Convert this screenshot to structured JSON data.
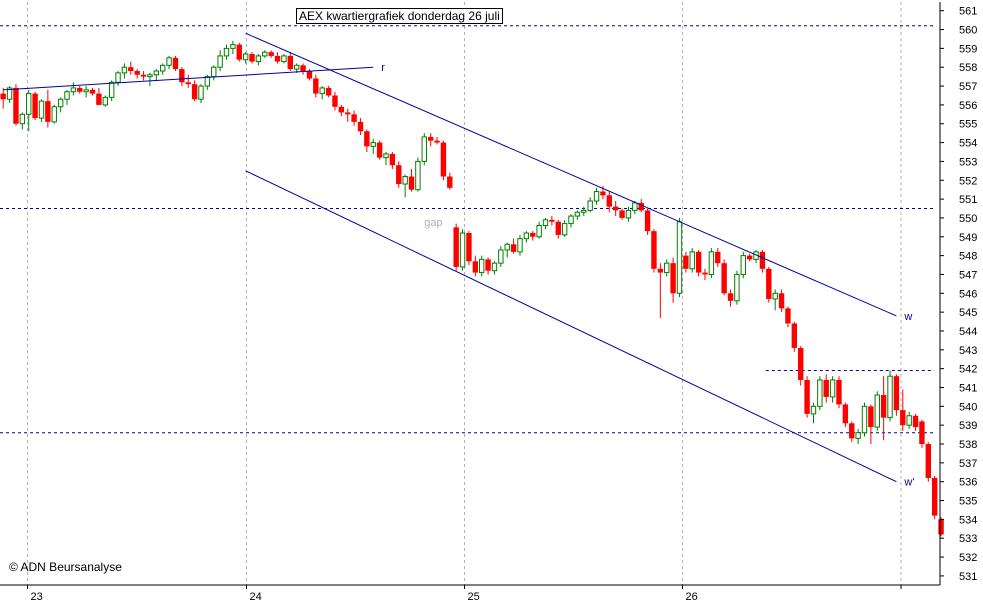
{
  "chart_data": {
    "type": "candlestick",
    "title": "AEX kwartiergrafiek donderdag 26 juli",
    "copyright": "© ADN Beursanalyse",
    "y_axis": {
      "min": 531,
      "max": 561,
      "ticks": [
        531,
        532,
        533,
        534,
        535,
        536,
        537,
        538,
        539,
        540,
        541,
        542,
        543,
        544,
        545,
        546,
        547,
        548,
        549,
        550,
        551,
        552,
        553,
        554,
        555,
        556,
        557,
        558,
        559,
        560,
        561
      ]
    },
    "x_axis": {
      "labels": [
        "23",
        "24",
        "25",
        "26"
      ],
      "bars_per_day": 34
    },
    "grid": true,
    "colors": {
      "up": "#008000",
      "down": "#ff0000",
      "trend": "#0000a0",
      "ref": "#0000a0",
      "grid": "#b0b0b0",
      "gap": "#b0b0b0"
    },
    "reference_lines": [
      {
        "y": 560.2
      },
      {
        "y": 550.5
      },
      {
        "y": 538.6
      },
      {
        "y": 541.9,
        "from_bar": 120
      }
    ],
    "trend_lines": [
      {
        "label": "r",
        "from": [
          0,
          556.8
        ],
        "to": [
          58,
          558.0
        ]
      },
      {
        "label": "w",
        "from": [
          38,
          559.8
        ],
        "to": [
          140,
          544.8
        ]
      },
      {
        "label": "w'",
        "from": [
          38,
          552.5
        ],
        "to": [
          140,
          536.0
        ]
      }
    ],
    "annotations": [
      {
        "text": "gap",
        "x": 66,
        "y": 550.2
      }
    ],
    "candles": [
      [
        556.6,
        556.9,
        555.8,
        556.3
      ],
      [
        556.3,
        557.0,
        556.1,
        556.9
      ],
      [
        556.9,
        557.1,
        554.9,
        555.0
      ],
      [
        555.0,
        555.6,
        554.7,
        555.5
      ],
      [
        555.5,
        556.8,
        554.6,
        556.6
      ],
      [
        556.6,
        556.7,
        555.2,
        555.3
      ],
      [
        555.3,
        556.3,
        555.1,
        556.2
      ],
      [
        556.2,
        556.8,
        554.8,
        555.1
      ],
      [
        555.1,
        556.0,
        555.0,
        555.9
      ],
      [
        555.9,
        556.4,
        555.6,
        556.3
      ],
      [
        556.3,
        556.8,
        556.0,
        556.7
      ],
      [
        556.7,
        557.2,
        556.5,
        556.9
      ],
      [
        556.9,
        557.0,
        556.6,
        556.7
      ],
      [
        556.7,
        557.0,
        556.4,
        556.8
      ],
      [
        556.8,
        556.9,
        556.5,
        556.6
      ],
      [
        556.6,
        556.9,
        556.0,
        556.0
      ],
      [
        556.0,
        556.5,
        555.9,
        556.4
      ],
      [
        556.4,
        557.3,
        556.2,
        557.2
      ],
      [
        557.2,
        557.8,
        557.0,
        557.7
      ],
      [
        557.7,
        558.2,
        557.4,
        558.0
      ],
      [
        558.0,
        558.3,
        557.6,
        557.8
      ],
      [
        557.8,
        557.9,
        557.4,
        557.6
      ],
      [
        557.6,
        557.8,
        557.3,
        557.5
      ],
      [
        557.5,
        557.7,
        557.0,
        557.6
      ],
      [
        557.6,
        557.9,
        557.3,
        557.8
      ],
      [
        557.8,
        558.2,
        557.6,
        558.1
      ],
      [
        558.1,
        558.6,
        557.9,
        558.5
      ],
      [
        558.5,
        558.6,
        557.8,
        557.9
      ],
      [
        557.9,
        558.0,
        557.0,
        557.2
      ],
      [
        557.2,
        557.6,
        556.9,
        557.1
      ],
      [
        557.1,
        557.3,
        556.2,
        556.3
      ],
      [
        556.3,
        557.1,
        556.1,
        557.0
      ],
      [
        557.0,
        557.6,
        556.8,
        557.5
      ],
      [
        557.5,
        558.1,
        557.3,
        558.0
      ],
      [
        558.0,
        558.9,
        557.8,
        558.6
      ],
      [
        558.6,
        559.2,
        558.4,
        559.0
      ],
      [
        559.0,
        559.4,
        558.7,
        559.2
      ],
      [
        559.2,
        559.3,
        558.3,
        558.4
      ],
      [
        558.4,
        558.8,
        558.2,
        558.7
      ],
      [
        558.7,
        558.8,
        558.2,
        558.3
      ],
      [
        558.3,
        558.7,
        558.1,
        558.6
      ],
      [
        558.6,
        558.9,
        558.5,
        558.8
      ],
      [
        558.8,
        558.9,
        558.5,
        558.6
      ],
      [
        558.6,
        558.8,
        558.2,
        558.3
      ],
      [
        558.3,
        558.7,
        558.2,
        558.6
      ],
      [
        558.6,
        558.8,
        557.8,
        557.9
      ],
      [
        557.9,
        558.2,
        557.7,
        558.1
      ],
      [
        558.1,
        558.2,
        557.6,
        557.8
      ],
      [
        557.8,
        557.9,
        557.3,
        557.4
      ],
      [
        557.4,
        557.6,
        556.4,
        556.6
      ],
      [
        556.6,
        557.0,
        556.3,
        556.9
      ],
      [
        556.9,
        557.0,
        556.4,
        556.5
      ],
      [
        556.5,
        556.7,
        555.7,
        555.9
      ],
      [
        555.9,
        556.0,
        555.4,
        555.6
      ],
      [
        555.6,
        555.8,
        555.1,
        555.5
      ],
      [
        555.5,
        555.7,
        554.9,
        555.1
      ],
      [
        555.1,
        555.3,
        554.4,
        554.6
      ],
      [
        554.6,
        554.7,
        553.5,
        553.8
      ],
      [
        553.8,
        554.2,
        553.4,
        554.0
      ],
      [
        554.0,
        554.1,
        553.1,
        553.2
      ],
      [
        553.2,
        553.5,
        552.8,
        553.4
      ],
      [
        553.4,
        553.5,
        552.6,
        552.8
      ],
      [
        552.8,
        553.0,
        551.6,
        551.8
      ],
      [
        551.8,
        552.3,
        551.1,
        552.2
      ],
      [
        552.2,
        552.6,
        551.4,
        551.5
      ],
      [
        551.5,
        553.2,
        551.4,
        553.0
      ],
      [
        553.0,
        554.5,
        552.8,
        554.3
      ],
      [
        554.3,
        554.5,
        553.8,
        554.1
      ],
      [
        554.1,
        554.3,
        553.9,
        554.0
      ],
      [
        554.0,
        554.1,
        552.0,
        552.2
      ],
      [
        552.2,
        552.4,
        551.5,
        551.6
      ],
      [
        549.5,
        549.7,
        547.2,
        547.4
      ],
      [
        547.4,
        549.4,
        547.2,
        549.2
      ],
      [
        549.2,
        549.3,
        547.5,
        547.7
      ],
      [
        547.7,
        548.0,
        546.9,
        547.1
      ],
      [
        547.1,
        548.0,
        546.9,
        547.8
      ],
      [
        547.8,
        547.9,
        547.0,
        547.2
      ],
      [
        547.2,
        547.7,
        547.0,
        547.6
      ],
      [
        547.6,
        548.5,
        547.4,
        548.3
      ],
      [
        548.3,
        548.7,
        547.9,
        548.6
      ],
      [
        548.6,
        548.9,
        548.1,
        548.2
      ],
      [
        548.2,
        549.1,
        548.0,
        548.9
      ],
      [
        548.9,
        549.3,
        548.7,
        549.2
      ],
      [
        549.2,
        549.3,
        548.8,
        549.0
      ],
      [
        549.0,
        549.8,
        548.9,
        549.6
      ],
      [
        549.6,
        550.0,
        549.4,
        549.9
      ],
      [
        549.9,
        550.1,
        549.6,
        549.8
      ],
      [
        549.8,
        549.9,
        548.9,
        549.1
      ],
      [
        549.1,
        549.9,
        549.0,
        549.7
      ],
      [
        549.7,
        550.2,
        549.5,
        550.1
      ],
      [
        550.1,
        550.4,
        549.9,
        550.3
      ],
      [
        550.3,
        550.6,
        550.1,
        550.4
      ],
      [
        550.4,
        551.1,
        550.3,
        550.9
      ],
      [
        550.9,
        551.6,
        550.7,
        551.4
      ],
      [
        551.4,
        551.7,
        551.0,
        551.2
      ],
      [
        551.2,
        551.4,
        550.3,
        550.6
      ],
      [
        550.6,
        550.9,
        550.1,
        550.4
      ],
      [
        550.4,
        550.5,
        549.9,
        550.0
      ],
      [
        550.0,
        550.6,
        549.8,
        550.4
      ],
      [
        550.4,
        550.9,
        550.2,
        550.8
      ],
      [
        550.8,
        551.0,
        550.3,
        550.4
      ],
      [
        550.4,
        550.5,
        549.1,
        549.3
      ],
      [
        549.3,
        549.4,
        547.1,
        547.3
      ],
      [
        547.3,
        547.6,
        544.7,
        547.1
      ],
      [
        547.1,
        547.8,
        546.9,
        547.6
      ],
      [
        547.6,
        547.9,
        545.5,
        546.0
      ],
      [
        546.0,
        550.0,
        545.8,
        549.8
      ],
      [
        548.0,
        548.2,
        547.1,
        547.3
      ],
      [
        547.3,
        548.4,
        547.1,
        548.2
      ],
      [
        548.2,
        548.3,
        546.9,
        547.1
      ],
      [
        547.1,
        547.3,
        546.7,
        547.0
      ],
      [
        547.0,
        548.4,
        546.8,
        548.2
      ],
      [
        548.2,
        548.4,
        547.4,
        547.6
      ],
      [
        547.6,
        547.8,
        545.9,
        546.0
      ],
      [
        546.0,
        546.2,
        545.3,
        545.6
      ],
      [
        545.6,
        547.2,
        545.4,
        547.0
      ],
      [
        547.0,
        548.2,
        546.8,
        548.0
      ],
      [
        548.0,
        548.1,
        547.7,
        547.8
      ],
      [
        547.8,
        548.3,
        547.6,
        548.2
      ],
      [
        548.2,
        548.3,
        547.1,
        547.3
      ],
      [
        547.3,
        547.4,
        545.5,
        545.7
      ],
      [
        545.7,
        546.2,
        545.1,
        546.0
      ],
      [
        546.0,
        546.2,
        545.0,
        545.2
      ],
      [
        545.2,
        545.3,
        544.2,
        544.4
      ],
      [
        544.4,
        544.5,
        542.9,
        543.1
      ],
      [
        543.1,
        543.2,
        541.1,
        541.4
      ],
      [
        541.4,
        541.6,
        539.4,
        539.6
      ],
      [
        539.6,
        540.2,
        539.1,
        540.0
      ],
      [
        540.0,
        541.6,
        539.8,
        541.4
      ],
      [
        541.4,
        541.7,
        540.2,
        540.5
      ],
      [
        540.5,
        541.6,
        540.2,
        541.4
      ],
      [
        541.4,
        541.6,
        539.9,
        540.1
      ],
      [
        540.1,
        540.2,
        538.9,
        539.1
      ],
      [
        539.1,
        539.2,
        538.1,
        538.3
      ],
      [
        538.3,
        538.8,
        538.0,
        538.6
      ],
      [
        538.6,
        540.2,
        538.4,
        540.0
      ],
      [
        540.0,
        540.1,
        538.0,
        538.9
      ],
      [
        538.9,
        540.8,
        538.7,
        540.6
      ],
      [
        540.6,
        541.6,
        538.2,
        539.4
      ],
      [
        539.4,
        541.9,
        539.2,
        541.6
      ],
      [
        541.6,
        541.7,
        539.5,
        539.8
      ],
      [
        539.8,
        540.9,
        538.7,
        539.0
      ],
      [
        539.0,
        539.7,
        538.8,
        539.5
      ],
      [
        539.5,
        539.6,
        538.7,
        538.9
      ],
      [
        539.2,
        539.3,
        537.8,
        538.0
      ],
      [
        538.0,
        538.1,
        536.0,
        536.2
      ],
      [
        536.2,
        536.3,
        534.0,
        534.2
      ],
      [
        534.0,
        534.1,
        533.1,
        533.2
      ]
    ]
  }
}
